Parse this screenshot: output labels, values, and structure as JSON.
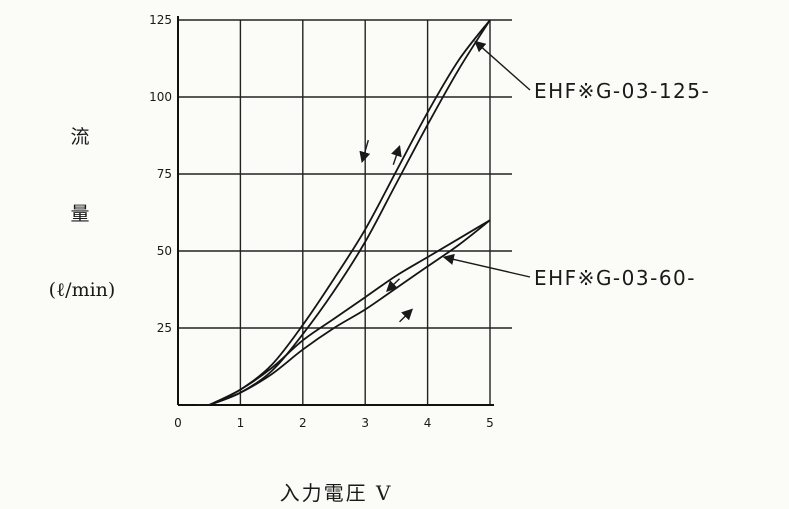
{
  "chart_data": {
    "type": "line",
    "title": "",
    "xlabel": "入力電圧 V",
    "ylabel": [
      "流",
      "量",
      "(ℓ/min)"
    ],
    "xlim": [
      0,
      5
    ],
    "ylim": [
      0,
      125
    ],
    "x_ticks": [
      "0",
      "1",
      "2",
      "3",
      "4",
      "5"
    ],
    "y_ticks": [
      "25",
      "50",
      "75",
      "100",
      "125"
    ],
    "grid": true,
    "series": [
      {
        "name": "EHF※G-03-125-",
        "direction": "increasing",
        "x": [
          0.5,
          1,
          1.5,
          2,
          2.5,
          3,
          3.5,
          4,
          4.5,
          5
        ],
        "y": [
          0,
          4,
          11,
          23,
          37,
          53,
          72,
          91,
          109,
          125
        ]
      },
      {
        "name": "EHF※G-03-125-",
        "direction": "decreasing",
        "x": [
          0.5,
          1,
          1.5,
          2,
          2.5,
          3,
          3.5,
          4,
          4.5,
          5
        ],
        "y": [
          0,
          5,
          13,
          26,
          41,
          57,
          76,
          95,
          112,
          125
        ]
      },
      {
        "name": "EHF※G-03-60-",
        "direction": "increasing",
        "x": [
          0.5,
          1,
          1.5,
          2,
          2.5,
          3,
          3.5,
          4,
          4.5,
          5
        ],
        "y": [
          0,
          4,
          10,
          18,
          25,
          31,
          38,
          45,
          52,
          60
        ]
      },
      {
        "name": "EHF※G-03-60-",
        "direction": "decreasing",
        "x": [
          0.5,
          1,
          1.5,
          2,
          2.5,
          3,
          3.5,
          4,
          4.5,
          5
        ],
        "y": [
          0,
          5,
          12,
          21,
          28,
          35,
          42,
          48,
          54,
          60
        ]
      }
    ],
    "annotations": [
      {
        "text": "EHF※G-03-125-",
        "points_to": [
          4.7,
          118
        ]
      },
      {
        "text": "EHF※G-03-60-",
        "points_to": [
          4.2,
          48
        ]
      }
    ]
  }
}
